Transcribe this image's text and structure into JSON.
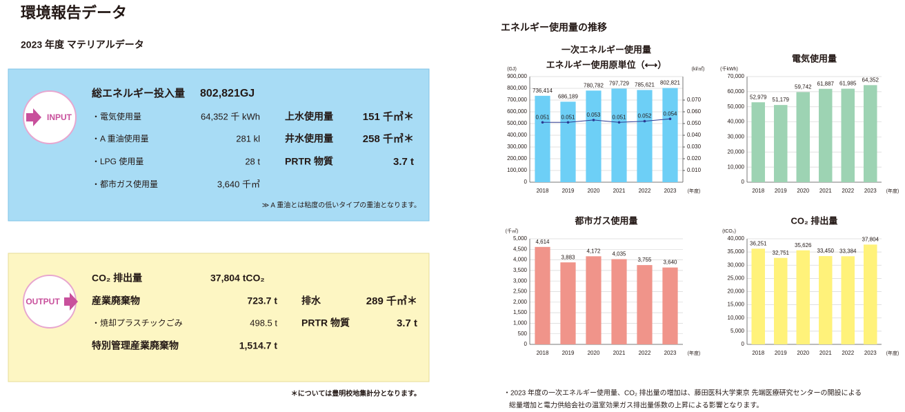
{
  "header": {
    "title": "環境報告データ",
    "subtitle": "2023 年度 マテリアルデータ"
  },
  "input": {
    "badge": "INPUT",
    "total": {
      "label": "総エネルギー投入量",
      "value": "802,821GJ"
    },
    "rows": [
      {
        "label": "・電気使用量",
        "value": "64,352 千 kWh"
      },
      {
        "label": "・A 重油使用量",
        "value": "281 kl"
      },
      {
        "label": "・LPG 使用量",
        "value": "28 t"
      },
      {
        "label": "・都市ガス使用量",
        "value": "3,640 千㎥"
      }
    ],
    "right_rows": [
      {
        "label": "上水使用量",
        "value": "151 千㎥＊"
      },
      {
        "label": "井水使用量",
        "value": "258 千㎥＊"
      },
      {
        "label": "PRTR 物質",
        "value": "3.7 t"
      }
    ],
    "note": "≫ A 重油とは粘度の低いタイプの重油となります。"
  },
  "output": {
    "badge": "OUTPUT",
    "rows": [
      {
        "label": "CO₂ 排出量",
        "value": "37,804 tCO₂"
      },
      {
        "label": "産業廃棄物",
        "value": "723.7 t"
      },
      {
        "label": "・焼却プラスチックごみ",
        "value": "498.5 t"
      },
      {
        "label": "特別管理産業廃棄物",
        "value": "1,514.7 t"
      }
    ],
    "right_rows": [
      {
        "label": "排水",
        "value": "289 千㎥＊"
      },
      {
        "label": "PRTR 物質",
        "value": "3.7 t"
      }
    ],
    "note": "＊については豊明校地集計分となります。"
  },
  "energy": {
    "heading": "エネルギー使用量の推移",
    "footnote": [
      "・2023 年度の一次エネルギー使用量、CO₂ 排出量の増加は、藤田医科大学東京 先端医療研究センターの開設による",
      "総量増加と電力供給会社の温室効果ガス排出量係数の上昇による影響となります。"
    ]
  },
  "chart_data": [
    {
      "type": "bar",
      "title": "一次エネルギー使用量",
      "subtitle": "エネルギー使用原単位（⟷）",
      "y_label": "(GJ)",
      "y2_label": "(kl/㎡)",
      "x_label": "(年度)",
      "categories": [
        "2018",
        "2019",
        "2020",
        "2021",
        "2022",
        "2023"
      ],
      "series": [
        {
          "color": "#6dcff6",
          "values": [
            736414,
            686189,
            780782,
            797729,
            785621,
            802821
          ],
          "value_labels": [
            "736,414",
            "686,189",
            "780,782",
            "797,729",
            "785,621",
            "802,821"
          ]
        },
        {
          "type": "line",
          "axis": "y2",
          "color": "#2b3990",
          "values": [
            0.051,
            0.051,
            0.053,
            0.051,
            0.052,
            0.054
          ]
        }
      ],
      "ylim": [
        0,
        900000
      ],
      "yticks": [
        0,
        {
          "value": 100000,
          "label": "100,000"
        },
        {
          "value": 200000,
          "label": "200,000"
        },
        {
          "value": 300000,
          "label": "300,000"
        },
        {
          "value": 400000,
          "label": "400,000"
        },
        {
          "value": 500000,
          "label": "500,000"
        },
        {
          "value": 600000,
          "label": "600,000"
        },
        {
          "value": 700000,
          "label": "700,000"
        },
        {
          "value": 800000,
          "label": "800,000"
        },
        {
          "value": 900000,
          "label": "900,000"
        }
      ],
      "y2lim": [
        0,
        0.09
      ],
      "y2ticks": [
        {
          "value": 0.01,
          "label": "0.010"
        },
        {
          "value": 0.02,
          "label": "0.020"
        },
        {
          "value": 0.03,
          "label": "0.030"
        },
        {
          "value": 0.04,
          "label": "0.040"
        },
        {
          "value": 0.05,
          "label": "0.050"
        },
        {
          "value": 0.06,
          "label": "0.060"
        },
        {
          "value": 0.07,
          "label": "0.070"
        }
      ],
      "grid": true
    },
    {
      "type": "bar",
      "title": "電気使用量",
      "y_label": "(千kWh)",
      "x_label": "(年度)",
      "categories": [
        "2018",
        "2019",
        "2020",
        "2021",
        "2022",
        "2023"
      ],
      "color": "#9dd3b3",
      "values": [
        52979,
        51179,
        59742,
        61887,
        61985,
        64352
      ],
      "value_labels": [
        "52,979",
        "51,179",
        "59,742",
        "61,887",
        "61,985",
        "64,352"
      ],
      "ylim": [
        0,
        70000
      ],
      "yticks": [
        0,
        {
          "value": 10000,
          "label": "10,000"
        },
        {
          "value": 20000,
          "label": "20,000"
        },
        {
          "value": 30000,
          "label": "30,000"
        },
        {
          "value": 40000,
          "label": "40,000"
        },
        {
          "value": 50000,
          "label": "50,000"
        },
        {
          "value": 60000,
          "label": "60,000"
        },
        {
          "value": 70000,
          "label": "70,000"
        }
      ],
      "grid": true
    },
    {
      "type": "bar",
      "title": "都市ガス使用量",
      "y_label": "(千㎥)",
      "x_label": "(年度)",
      "categories": [
        "2018",
        "2019",
        "2020",
        "2021",
        "2022",
        "2023"
      ],
      "color": "#f0948a",
      "values": [
        4614,
        3883,
        4172,
        4035,
        3755,
        3640
      ],
      "value_labels": [
        "4,614",
        "3,883",
        "4,172",
        "4,035",
        "3,755",
        "3,640"
      ],
      "ylim": [
        0,
        5000
      ],
      "yticks": [
        0,
        500,
        {
          "value": 1000,
          "label": "1,000"
        },
        {
          "value": 1500,
          "label": "1,500"
        },
        {
          "value": 2000,
          "label": "2,000"
        },
        {
          "value": 2500,
          "label": "2,500"
        },
        {
          "value": 3000,
          "label": "3,000"
        },
        {
          "value": 3500,
          "label": "3,500"
        },
        {
          "value": 4000,
          "label": "4,000"
        },
        {
          "value": 4500,
          "label": "4,500"
        },
        {
          "value": 5000,
          "label": "5,000"
        }
      ],
      "grid": true
    },
    {
      "type": "bar",
      "title": "CO₂ 排出量",
      "y_label": "(tCO₂)",
      "x_label": "(年度)",
      "categories": [
        "2018",
        "2019",
        "2020",
        "2021",
        "2022",
        "2023"
      ],
      "color": "#fff27a",
      "values": [
        36251,
        32751,
        35626,
        33450,
        33384,
        37804
      ],
      "value_labels": [
        "36,251",
        "32,751",
        "35,626",
        "33,450",
        "33,384",
        "37,804"
      ],
      "ylim": [
        0,
        40000
      ],
      "yticks": [
        0,
        {
          "value": 5000,
          "label": "5,000"
        },
        {
          "value": 10000,
          "label": "10,000"
        },
        {
          "value": 15000,
          "label": "15,000"
        },
        {
          "value": 20000,
          "label": "20,000"
        },
        {
          "value": 25000,
          "label": "25,000"
        },
        {
          "value": 30000,
          "label": "30,000"
        },
        {
          "value": 35000,
          "label": "35,000"
        },
        {
          "value": 40000,
          "label": "40,000"
        }
      ],
      "grid": true
    }
  ]
}
